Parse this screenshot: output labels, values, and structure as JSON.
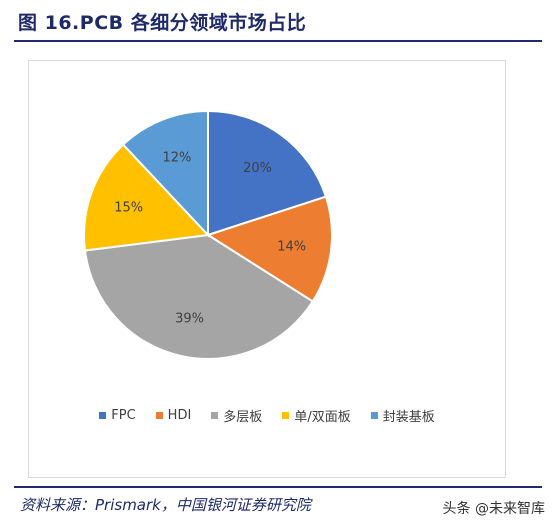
{
  "title": "图 16.PCB 各细分领域市场占比",
  "source": "资料来源：Prismark，中国银河证券研究院",
  "watermark": "头条 @未来智库",
  "chart_data": {
    "type": "pie",
    "title": "",
    "legend_position": "bottom",
    "slices": [
      {
        "name": "FPC",
        "value": 20,
        "label": "20%",
        "color": "#4472C4"
      },
      {
        "name": "HDI",
        "value": 14,
        "label": "14%",
        "color": "#ED7D31"
      },
      {
        "name": "多层板",
        "value": 39,
        "label": "39%",
        "color": "#A5A5A5"
      },
      {
        "name": "单/双面板",
        "value": 15,
        "label": "15%",
        "color": "#FFC000"
      },
      {
        "name": "封装基板",
        "value": 12,
        "label": "12%",
        "color": "#5B9BD5"
      }
    ]
  }
}
